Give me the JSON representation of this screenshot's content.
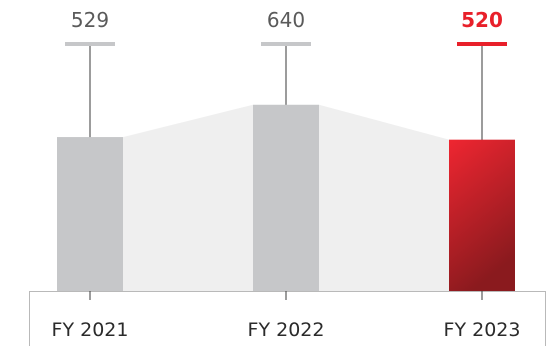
{
  "chart_data": {
    "type": "bar",
    "categories": [
      "FY 2021",
      "FY 2022",
      "FY 2023"
    ],
    "values": [
      529,
      640,
      520
    ],
    "value_labels": [
      "529",
      "640",
      "520"
    ],
    "highlight_index": 2,
    "ylim": [
      0,
      1000
    ],
    "grid": false,
    "colors": {
      "bar": "#c6c7c9",
      "bar_highlight_top": "#ef2631",
      "bar_highlight_bottom": "#8a1a1e",
      "label_highlight": "#e8202a",
      "label": "#5a5a5a",
      "connector_fill": "#efefef",
      "axis": "#b9b9b9",
      "leader_line": "#3a3a3a"
    }
  }
}
